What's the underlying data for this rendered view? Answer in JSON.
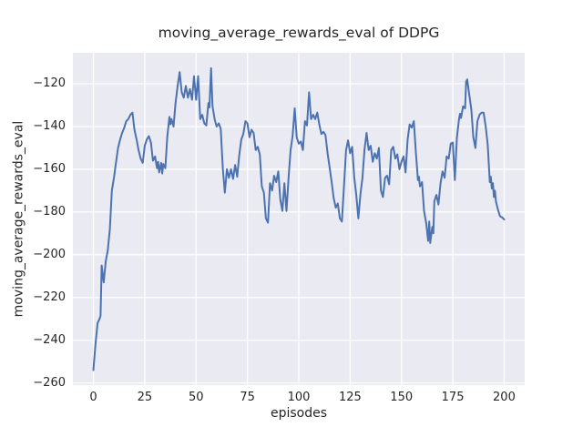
{
  "chart_data": {
    "type": "line",
    "title": "moving_average_rewards_eval of DDPG",
    "xlabel": "episodes",
    "ylabel": "moving_average_rewards_eval",
    "x_ticks": [
      0,
      25,
      50,
      75,
      100,
      125,
      150,
      175,
      200
    ],
    "y_ticks": [
      -260,
      -240,
      -220,
      -200,
      -180,
      -160,
      -140,
      -120
    ],
    "xlim": [
      -10,
      210
    ],
    "ylim": [
      -261,
      -105.5
    ],
    "grid": true,
    "legend": "none",
    "style": "seaborn-darkgrid",
    "colors": {
      "line": "#4c72b0",
      "plot_background": "#eaeaf2",
      "gridline": "#ffffff",
      "text": "#262626",
      "figure_background": "#ffffff"
    },
    "series": [
      {
        "name": "moving_average_rewards_eval",
        "points": [
          [
            0,
            -254
          ],
          [
            1,
            -242
          ],
          [
            2,
            -232
          ],
          [
            3,
            -230
          ],
          [
            3.5,
            -228.5
          ],
          [
            4,
            -205
          ],
          [
            5,
            -213
          ],
          [
            6,
            -203
          ],
          [
            7,
            -198
          ],
          [
            8,
            -188
          ],
          [
            9,
            -170
          ],
          [
            10,
            -164
          ],
          [
            11,
            -157
          ],
          [
            12,
            -150
          ],
          [
            13,
            -146
          ],
          [
            14,
            -143
          ],
          [
            15,
            -140.5
          ],
          [
            16,
            -137.5
          ],
          [
            17,
            -136.5
          ],
          [
            18,
            -134.5
          ],
          [
            19,
            -133.5
          ],
          [
            20,
            -141.5
          ],
          [
            21,
            -146
          ],
          [
            22,
            -151
          ],
          [
            23,
            -155
          ],
          [
            24,
            -157
          ],
          [
            25,
            -149
          ],
          [
            26,
            -146
          ],
          [
            27,
            -144.5
          ],
          [
            28,
            -147.5
          ],
          [
            29,
            -156
          ],
          [
            30,
            -154
          ],
          [
            31,
            -159.5
          ],
          [
            31.5,
            -156.5
          ],
          [
            32,
            -161.5
          ],
          [
            33,
            -157
          ],
          [
            33.5,
            -162
          ],
          [
            34,
            -157.5
          ],
          [
            35,
            -159.5
          ],
          [
            36,
            -144.5
          ],
          [
            37,
            -135.5
          ],
          [
            37.5,
            -139
          ],
          [
            38,
            -136.5
          ],
          [
            39,
            -140
          ],
          [
            40,
            -129
          ],
          [
            41,
            -121
          ],
          [
            42,
            -114.5
          ],
          [
            43,
            -124
          ],
          [
            44,
            -126.5
          ],
          [
            45,
            -121
          ],
          [
            46,
            -126.5
          ],
          [
            47,
            -122.5
          ],
          [
            48,
            -127.5
          ],
          [
            49,
            -116.5
          ],
          [
            50,
            -127.5
          ],
          [
            51,
            -116.5
          ],
          [
            52,
            -136.5
          ],
          [
            53,
            -134.5
          ],
          [
            54,
            -138.5
          ],
          [
            55,
            -139.5
          ],
          [
            56,
            -129
          ],
          [
            56.5,
            -131
          ],
          [
            57.3,
            -112.7
          ],
          [
            58,
            -130.5
          ],
          [
            59,
            -136.5
          ],
          [
            60,
            -140
          ],
          [
            61,
            -138.5
          ],
          [
            62,
            -141
          ],
          [
            63,
            -159.5
          ],
          [
            64,
            -171
          ],
          [
            65,
            -160
          ],
          [
            66,
            -164
          ],
          [
            67,
            -160
          ],
          [
            68,
            -164.5
          ],
          [
            69,
            -158
          ],
          [
            70,
            -163.5
          ],
          [
            71,
            -153.5
          ],
          [
            72,
            -146
          ],
          [
            73,
            -143.5
          ],
          [
            74,
            -137.5
          ],
          [
            75,
            -138.5
          ],
          [
            76,
            -145
          ],
          [
            77,
            -141.5
          ],
          [
            78,
            -143
          ],
          [
            79,
            -151
          ],
          [
            80,
            -149.5
          ],
          [
            81,
            -153
          ],
          [
            82,
            -168
          ],
          [
            83,
            -171
          ],
          [
            84,
            -183
          ],
          [
            85,
            -185
          ],
          [
            86,
            -166.5
          ],
          [
            87,
            -170
          ],
          [
            88,
            -163
          ],
          [
            89,
            -166
          ],
          [
            90,
            -161
          ],
          [
            91,
            -174
          ],
          [
            92,
            -179.5
          ],
          [
            93,
            -166.5
          ],
          [
            94,
            -179.5
          ],
          [
            95,
            -164.5
          ],
          [
            96,
            -151
          ],
          [
            97,
            -144.5
          ],
          [
            98,
            -131.5
          ],
          [
            99,
            -145
          ],
          [
            100,
            -148
          ],
          [
            101,
            -147
          ],
          [
            102,
            -151
          ],
          [
            103,
            -137.5
          ],
          [
            104,
            -139.5
          ],
          [
            105,
            -124
          ],
          [
            106,
            -136.5
          ],
          [
            107,
            -134.5
          ],
          [
            108,
            -136.5
          ],
          [
            109,
            -133.5
          ],
          [
            110,
            -139
          ],
          [
            111,
            -143.5
          ],
          [
            112,
            -142.5
          ],
          [
            113,
            -144
          ],
          [
            114,
            -152.5
          ],
          [
            115,
            -159
          ],
          [
            116,
            -166
          ],
          [
            117,
            -173.5
          ],
          [
            118,
            -178
          ],
          [
            119,
            -176
          ],
          [
            120,
            -183
          ],
          [
            121,
            -184.5
          ],
          [
            122,
            -168
          ],
          [
            123,
            -151
          ],
          [
            124,
            -146.5
          ],
          [
            125,
            -152.5
          ],
          [
            126,
            -149.5
          ],
          [
            127,
            -164
          ],
          [
            128,
            -172
          ],
          [
            129,
            -183
          ],
          [
            130,
            -172
          ],
          [
            131,
            -164
          ],
          [
            132,
            -151
          ],
          [
            133,
            -143
          ],
          [
            134,
            -151
          ],
          [
            135,
            -149
          ],
          [
            136,
            -156.5
          ],
          [
            137,
            -152.5
          ],
          [
            138,
            -155
          ],
          [
            139,
            -150
          ],
          [
            140,
            -170
          ],
          [
            141,
            -173
          ],
          [
            142,
            -164
          ],
          [
            143,
            -163
          ],
          [
            144,
            -167
          ],
          [
            145,
            -151
          ],
          [
            146,
            -149.5
          ],
          [
            147,
            -155
          ],
          [
            148,
            -153
          ],
          [
            149,
            -160
          ],
          [
            150,
            -156.5
          ],
          [
            151,
            -154
          ],
          [
            152,
            -161.5
          ],
          [
            153,
            -146
          ],
          [
            154,
            -139
          ],
          [
            155,
            -140.5
          ],
          [
            156,
            -137.5
          ],
          [
            157,
            -152
          ],
          [
            158,
            -165
          ],
          [
            158.5,
            -163.5
          ],
          [
            159,
            -168
          ],
          [
            160,
            -166
          ],
          [
            161,
            -179.5
          ],
          [
            162,
            -185
          ],
          [
            163,
            -193.5
          ],
          [
            163.5,
            -184.5
          ],
          [
            164,
            -194.5
          ],
          [
            165,
            -187
          ],
          [
            165.5,
            -190
          ],
          [
            166,
            -175
          ],
          [
            167,
            -172
          ],
          [
            168,
            -176.5
          ],
          [
            169,
            -166.5
          ],
          [
            170,
            -161
          ],
          [
            171,
            -164
          ],
          [
            172,
            -154
          ],
          [
            173,
            -155
          ],
          [
            174,
            -148
          ],
          [
            175,
            -147.5
          ],
          [
            176,
            -165
          ],
          [
            177,
            -145
          ],
          [
            178,
            -136.5
          ],
          [
            178.5,
            -134
          ],
          [
            179,
            -136
          ],
          [
            180,
            -130.5
          ],
          [
            181,
            -131.5
          ],
          [
            181.5,
            -119
          ],
          [
            182,
            -118
          ],
          [
            183,
            -125
          ],
          [
            184,
            -132
          ],
          [
            185,
            -145
          ],
          [
            186,
            -150
          ],
          [
            187,
            -137.5
          ],
          [
            188,
            -134.5
          ],
          [
            189,
            -133.5
          ],
          [
            190,
            -133.5
          ],
          [
            191,
            -140
          ],
          [
            192,
            -148.5
          ],
          [
            193,
            -166
          ],
          [
            193.5,
            -163.5
          ],
          [
            194,
            -169
          ],
          [
            194.5,
            -166.5
          ],
          [
            195,
            -173
          ],
          [
            195.5,
            -170
          ],
          [
            196,
            -175
          ],
          [
            197,
            -179
          ],
          [
            198,
            -182
          ],
          [
            199,
            -182.5
          ],
          [
            200,
            -183.5
          ]
        ]
      }
    ]
  }
}
